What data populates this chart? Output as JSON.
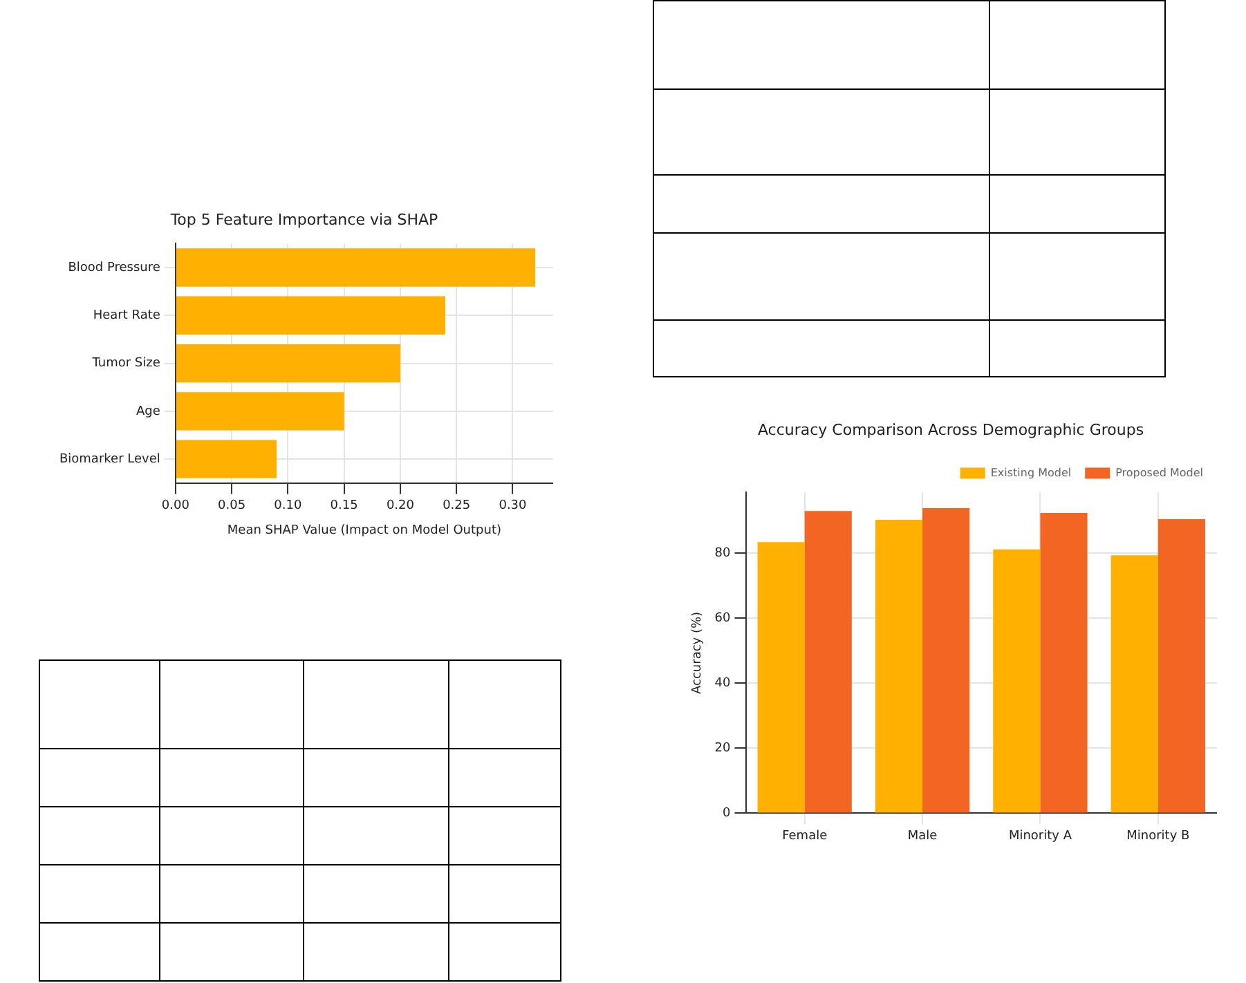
{
  "chart_data": [
    {
      "type": "bar",
      "orientation": "horizontal",
      "title": "Top 5 Feature Importance via SHAP",
      "xlabel": "Mean SHAP Value (Impact on Model Output)",
      "categories": [
        "Blood Pressure",
        "Heart Rate",
        "Tumor Size",
        "Age",
        "Biomarker Level"
      ],
      "values": [
        0.32,
        0.24,
        0.2,
        0.15,
        0.09
      ],
      "color": "#ffb000",
      "xlim": [
        0,
        0.336
      ],
      "xticks": [
        {
          "value": 0,
          "label": "0.00"
        },
        0.05,
        {
          "value": 0.1,
          "label": "0.10"
        },
        0.15,
        {
          "value": 0.2,
          "label": "0.20"
        },
        0.25,
        {
          "value": 0.3,
          "label": "0.30"
        }
      ],
      "grid": true
    },
    {
      "type": "bar",
      "title": "Accuracy Comparison Across Demographic Groups",
      "ylabel": "Accuracy (%)",
      "categories": [
        "Female",
        "Male",
        "Minority A",
        "Minority B"
      ],
      "series": [
        {
          "name": "Existing Model",
          "color": "#ffb000",
          "values": [
            83.4,
            90.3,
            81.2,
            79.4
          ]
        },
        {
          "name": "Proposed Model",
          "color": "#f26522",
          "values": [
            93,
            93.9,
            92.4,
            90.5
          ]
        }
      ],
      "ylim": [
        0,
        98.7
      ],
      "yticks": [
        0,
        20,
        40,
        60,
        80
      ],
      "grid": true,
      "legend": "top right"
    }
  ]
}
